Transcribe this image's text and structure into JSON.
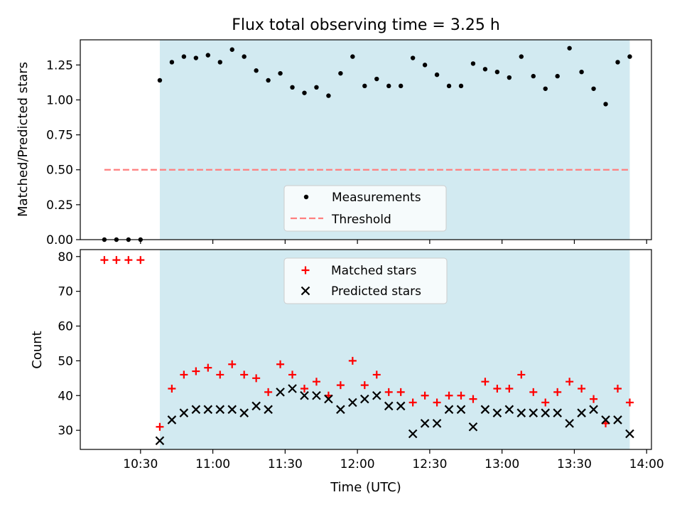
{
  "chart_data": {
    "type": "scatter",
    "title": "Flux total observing time = 3.25 h",
    "xlabel": "Time (UTC)",
    "x_ticks": [
      "10:30",
      "11:00",
      "11:30",
      "12:00",
      "12:30",
      "13:00",
      "13:30",
      "14:00"
    ],
    "x_range": [
      "10:05",
      "14:02"
    ],
    "shaded_interval": [
      "10:38",
      "13:53"
    ],
    "colors": {
      "shade": "#add8e6",
      "threshold": "#ff7f7f",
      "matched": "#ff0000",
      "predicted": "#000000",
      "measurements": "#000000"
    },
    "top_panel": {
      "ylabel": "Matched/Predicted stars",
      "ylim": [
        0.0,
        1.43
      ],
      "y_ticks": [
        "0.00",
        "0.25",
        "0.50",
        "0.75",
        "1.00",
        "1.25"
      ],
      "legend": [
        "Measurements",
        "Threshold"
      ],
      "threshold": {
        "name": "Threshold",
        "value": 0.5,
        "x_start": "10:15",
        "x_end": "13:53"
      },
      "measurements": {
        "name": "Measurements",
        "x": [
          "10:15",
          "10:20",
          "10:25",
          "10:30",
          "10:38",
          "10:43",
          "10:48",
          "10:53",
          "10:58",
          "11:03",
          "11:08",
          "11:13",
          "11:18",
          "11:23",
          "11:28",
          "11:33",
          "11:38",
          "11:43",
          "11:48",
          "11:53",
          "11:58",
          "12:03",
          "12:08",
          "12:13",
          "12:18",
          "12:23",
          "12:28",
          "12:33",
          "12:38",
          "12:43",
          "12:48",
          "12:53",
          "12:58",
          "13:03",
          "13:08",
          "13:13",
          "13:18",
          "13:23",
          "13:28",
          "13:33",
          "13:38",
          "13:43",
          "13:48",
          "13:53"
        ],
        "y": [
          0.0,
          0.0,
          0.0,
          0.0,
          1.14,
          1.27,
          1.31,
          1.3,
          1.32,
          1.27,
          1.36,
          1.31,
          1.21,
          1.14,
          1.19,
          1.09,
          1.05,
          1.09,
          1.03,
          1.19,
          1.31,
          1.1,
          1.15,
          1.1,
          1.1,
          1.3,
          1.25,
          1.18,
          1.1,
          1.1,
          1.26,
          1.22,
          1.2,
          1.16,
          1.31,
          1.17,
          1.08,
          1.17,
          1.37,
          1.2,
          1.08,
          0.97,
          1.27,
          1.31
        ]
      }
    },
    "bottom_panel": {
      "ylabel": "Count",
      "ylim": [
        24.5,
        82.0
      ],
      "y_ticks": [
        "30",
        "40",
        "50",
        "60",
        "70",
        "80"
      ],
      "legend": [
        "Matched stars",
        "Predicted stars"
      ],
      "matched": {
        "name": "Matched stars",
        "x": [
          "10:15",
          "10:20",
          "10:25",
          "10:30",
          "10:38",
          "10:43",
          "10:48",
          "10:53",
          "10:58",
          "11:03",
          "11:08",
          "11:13",
          "11:18",
          "11:23",
          "11:28",
          "11:33",
          "11:38",
          "11:43",
          "11:48",
          "11:53",
          "11:58",
          "12:03",
          "12:08",
          "12:13",
          "12:18",
          "12:23",
          "12:28",
          "12:33",
          "12:38",
          "12:43",
          "12:48",
          "12:53",
          "12:58",
          "13:03",
          "13:08",
          "13:13",
          "13:18",
          "13:23",
          "13:28",
          "13:33",
          "13:38",
          "13:43",
          "13:48",
          "13:53"
        ],
        "y": [
          79,
          79,
          79,
          79,
          31,
          42,
          46,
          47,
          48,
          46,
          49,
          46,
          45,
          41,
          49,
          46,
          42,
          44,
          40,
          43,
          50,
          43,
          46,
          41,
          41,
          38,
          40,
          38,
          40,
          40,
          39,
          44,
          42,
          42,
          46,
          41,
          38,
          41,
          44,
          42,
          39,
          32,
          42,
          38
        ]
      },
      "predicted": {
        "name": "Predicted stars",
        "x": [
          "10:38",
          "10:43",
          "10:48",
          "10:53",
          "10:58",
          "11:03",
          "11:08",
          "11:13",
          "11:18",
          "11:23",
          "11:28",
          "11:33",
          "11:38",
          "11:43",
          "11:48",
          "11:53",
          "11:58",
          "12:03",
          "12:08",
          "12:13",
          "12:18",
          "12:23",
          "12:28",
          "12:33",
          "12:38",
          "12:43",
          "12:48",
          "12:53",
          "12:58",
          "13:03",
          "13:08",
          "13:13",
          "13:18",
          "13:23",
          "13:28",
          "13:33",
          "13:38",
          "13:43",
          "13:48",
          "13:53"
        ],
        "y": [
          27,
          33,
          35,
          36,
          36,
          36,
          36,
          35,
          37,
          36,
          41,
          42,
          40,
          40,
          39,
          36,
          38,
          39,
          40,
          37,
          37,
          29,
          32,
          32,
          36,
          36,
          31,
          36,
          35,
          36,
          35,
          35,
          35,
          35,
          32,
          35,
          36,
          33,
          33,
          29
        ]
      }
    }
  }
}
